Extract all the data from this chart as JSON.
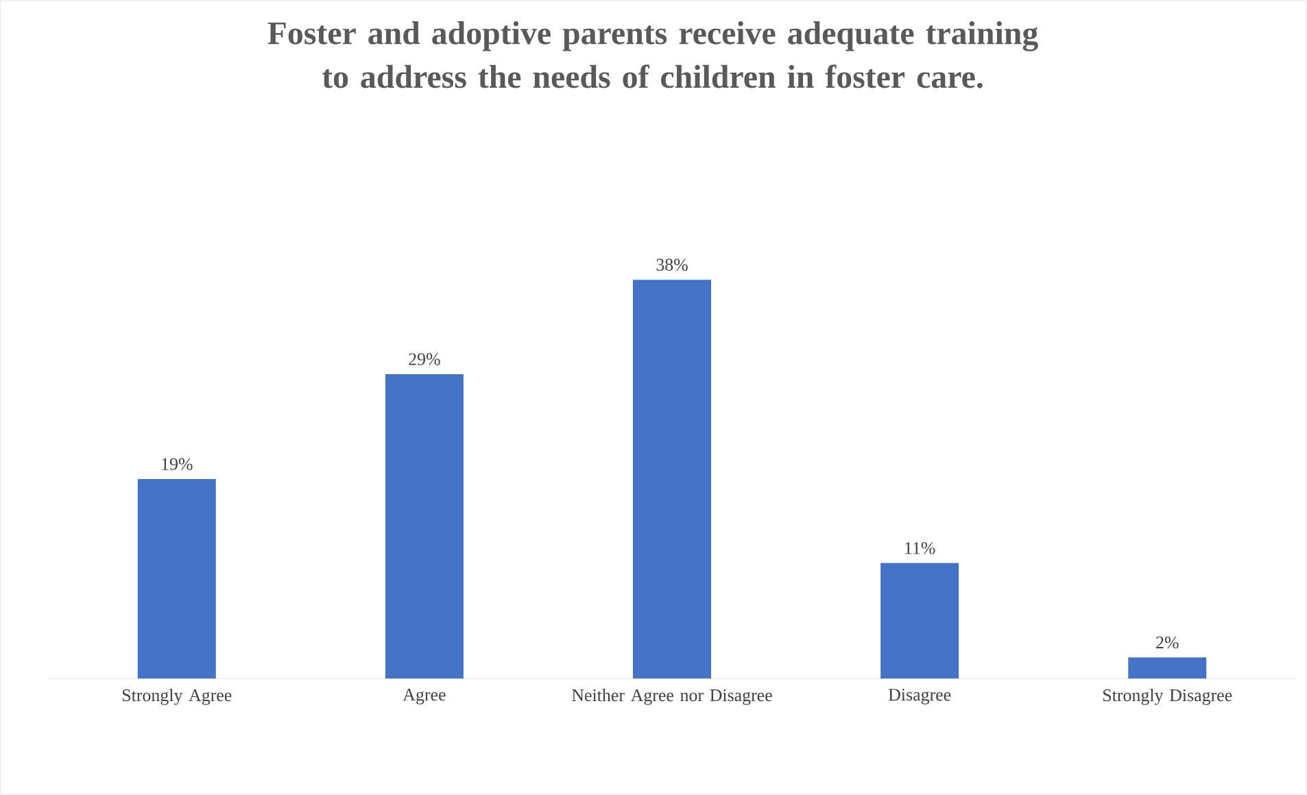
{
  "chart_data": {
    "type": "bar",
    "title": "Foster and adoptive parents receive adequate training to address the needs of children in foster care.",
    "categories": [
      "Strongly Agree",
      "Agree",
      "Neither Agree nor Disagree",
      "Disagree",
      "Strongly Disagree"
    ],
    "values": [
      19,
      29,
      38,
      11,
      2
    ],
    "value_labels": [
      "19%",
      "29%",
      "38%",
      "11%",
      "2%"
    ],
    "color": "#4472c4"
  }
}
